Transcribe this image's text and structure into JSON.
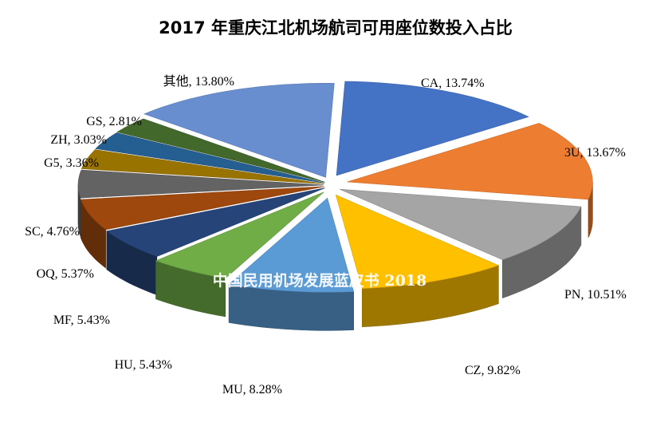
{
  "chart_data": {
    "type": "pie",
    "title": "2017 年重庆江北机场航司可用座位数投入占比",
    "watermark": "中国民用机场发展蓝皮书 2018",
    "slices": [
      {
        "name": "CA",
        "value": 13.74,
        "label": "CA, 13.74%",
        "color": "#4472c4"
      },
      {
        "name": "3U",
        "value": 13.67,
        "label": "3U, 13.67%",
        "color": "#ed7d31"
      },
      {
        "name": "PN",
        "value": 10.51,
        "label": "PN, 10.51%",
        "color": "#a5a5a5"
      },
      {
        "name": "CZ",
        "value": 9.82,
        "label": "CZ, 9.82%",
        "color": "#ffc000"
      },
      {
        "name": "MU",
        "value": 8.28,
        "label": "MU, 8.28%",
        "color": "#5b9bd5"
      },
      {
        "name": "HU",
        "value": 5.43,
        "label": "HU, 5.43%",
        "color": "#70ad47"
      },
      {
        "name": "MF",
        "value": 5.43,
        "label": "MF, 5.43%",
        "color": "#264478"
      },
      {
        "name": "OQ",
        "value": 5.37,
        "label": "OQ, 5.37%",
        "color": "#9e480e"
      },
      {
        "name": "SC",
        "value": 4.76,
        "label": "SC, 4.76%",
        "color": "#636363"
      },
      {
        "name": "G5",
        "value": 3.36,
        "label": "G5, 3.36%",
        "color": "#997300"
      },
      {
        "name": "ZH",
        "value": 3.03,
        "label": "ZH, 3.03%",
        "color": "#255e91"
      },
      {
        "name": "GS",
        "value": 2.81,
        "label": "GS, 2.81%",
        "color": "#43682b"
      },
      {
        "name": "其他",
        "value": 13.8,
        "label": "其他, 13.80%",
        "color": "#698ed0"
      }
    ]
  }
}
